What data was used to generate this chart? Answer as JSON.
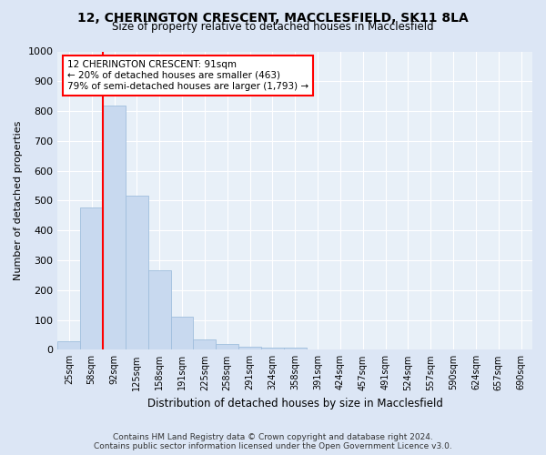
{
  "title1": "12, CHERINGTON CRESCENT, MACCLESFIELD, SK11 8LA",
  "title2": "Size of property relative to detached houses in Macclesfield",
  "xlabel": "Distribution of detached houses by size in Macclesfield",
  "ylabel": "Number of detached properties",
  "footer1": "Contains HM Land Registry data © Crown copyright and database right 2024.",
  "footer2": "Contains public sector information licensed under the Open Government Licence v3.0.",
  "categories": [
    "25sqm",
    "58sqm",
    "92sqm",
    "125sqm",
    "158sqm",
    "191sqm",
    "225sqm",
    "258sqm",
    "291sqm",
    "324sqm",
    "358sqm",
    "391sqm",
    "424sqm",
    "457sqm",
    "491sqm",
    "524sqm",
    "557sqm",
    "590sqm",
    "624sqm",
    "657sqm",
    "690sqm"
  ],
  "values": [
    28,
    478,
    820,
    515,
    265,
    110,
    35,
    20,
    10,
    7,
    7,
    0,
    0,
    0,
    0,
    0,
    0,
    0,
    0,
    0,
    0
  ],
  "bar_color": "#c8d9ef",
  "bar_edge_color": "#a0bedd",
  "property_line_color": "red",
  "annotation_text": "12 CHERINGTON CRESCENT: 91sqm\n← 20% of detached houses are smaller (463)\n79% of semi-detached houses are larger (1,793) →",
  "annotation_box_color": "white",
  "annotation_box_edge": "red",
  "ylim": [
    0,
    1000
  ],
  "yticks": [
    0,
    100,
    200,
    300,
    400,
    500,
    600,
    700,
    800,
    900,
    1000
  ],
  "bg_color": "#dce6f5",
  "plot_bg_color": "#e8f0f8",
  "grid_color": "white"
}
